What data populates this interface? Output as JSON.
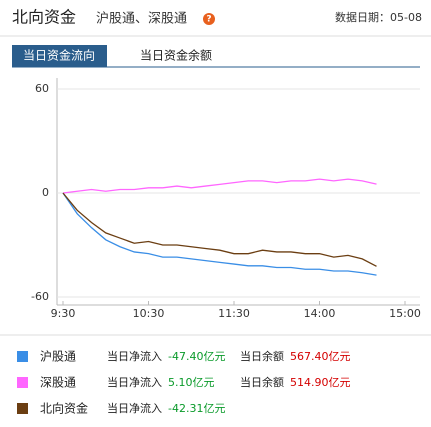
{
  "header": {
    "title": "北向资金",
    "links": "沪股通、深股通",
    "help": "?",
    "date": "数据日期：05-08"
  },
  "tabs": [
    "当日资金流向",
    "当日资金余额"
  ],
  "chart_data": {
    "type": "line",
    "x": [
      0,
      10,
      20,
      30,
      40,
      50,
      60,
      70,
      80,
      90,
      100,
      110,
      120,
      130,
      140,
      150,
      160,
      170,
      180,
      190,
      200,
      210,
      220
    ],
    "xlim": [
      0,
      240
    ],
    "xticks": [
      {
        "value": 0,
        "label": "9:30"
      },
      {
        "value": 60,
        "label": "10:30"
      },
      {
        "value": 120,
        "label": "11:30"
      },
      {
        "value": 180,
        "label": "14:00"
      },
      {
        "value": 240,
        "label": "15:00"
      }
    ],
    "ylim": [
      -60,
      60
    ],
    "yticks": [
      -60,
      0,
      60
    ],
    "series": [
      {
        "name": "沪股通",
        "color": "#3a8ee6",
        "values": [
          0,
          -12,
          -20,
          -27,
          -31,
          -34,
          -35,
          -37,
          -37,
          -38,
          -39,
          -40,
          -41,
          -42,
          -42,
          -43,
          -43,
          -44,
          -44,
          -45,
          -45,
          -46,
          -47.4
        ]
      },
      {
        "name": "深股通",
        "color": "#ff66ff",
        "values": [
          0,
          1,
          2,
          1,
          2,
          2,
          3,
          3,
          4,
          3,
          4,
          5,
          6,
          7,
          7,
          6,
          7,
          7,
          8,
          7,
          8,
          7,
          5.1
        ]
      },
      {
        "name": "北向资金",
        "color": "#6b3e12",
        "values": [
          0,
          -10,
          -17,
          -23,
          -26,
          -29,
          -28,
          -30,
          -30,
          -31,
          -32,
          -33,
          -35,
          -35,
          -33,
          -34,
          -34,
          -35,
          -35,
          -37,
          -36,
          -38,
          -42.31
        ]
      }
    ]
  },
  "legend": [
    {
      "label": "当日净流入",
      "inflow": "-47.40亿元",
      "balance_label": "当日余额",
      "balance": "567.40亿元"
    },
    {
      "label": "当日净流入",
      "inflow": "5.10亿元",
      "balance_label": "当日余额",
      "balance": "514.90亿元"
    },
    {
      "label": "当日净流入",
      "inflow": "-42.31亿元"
    }
  ]
}
